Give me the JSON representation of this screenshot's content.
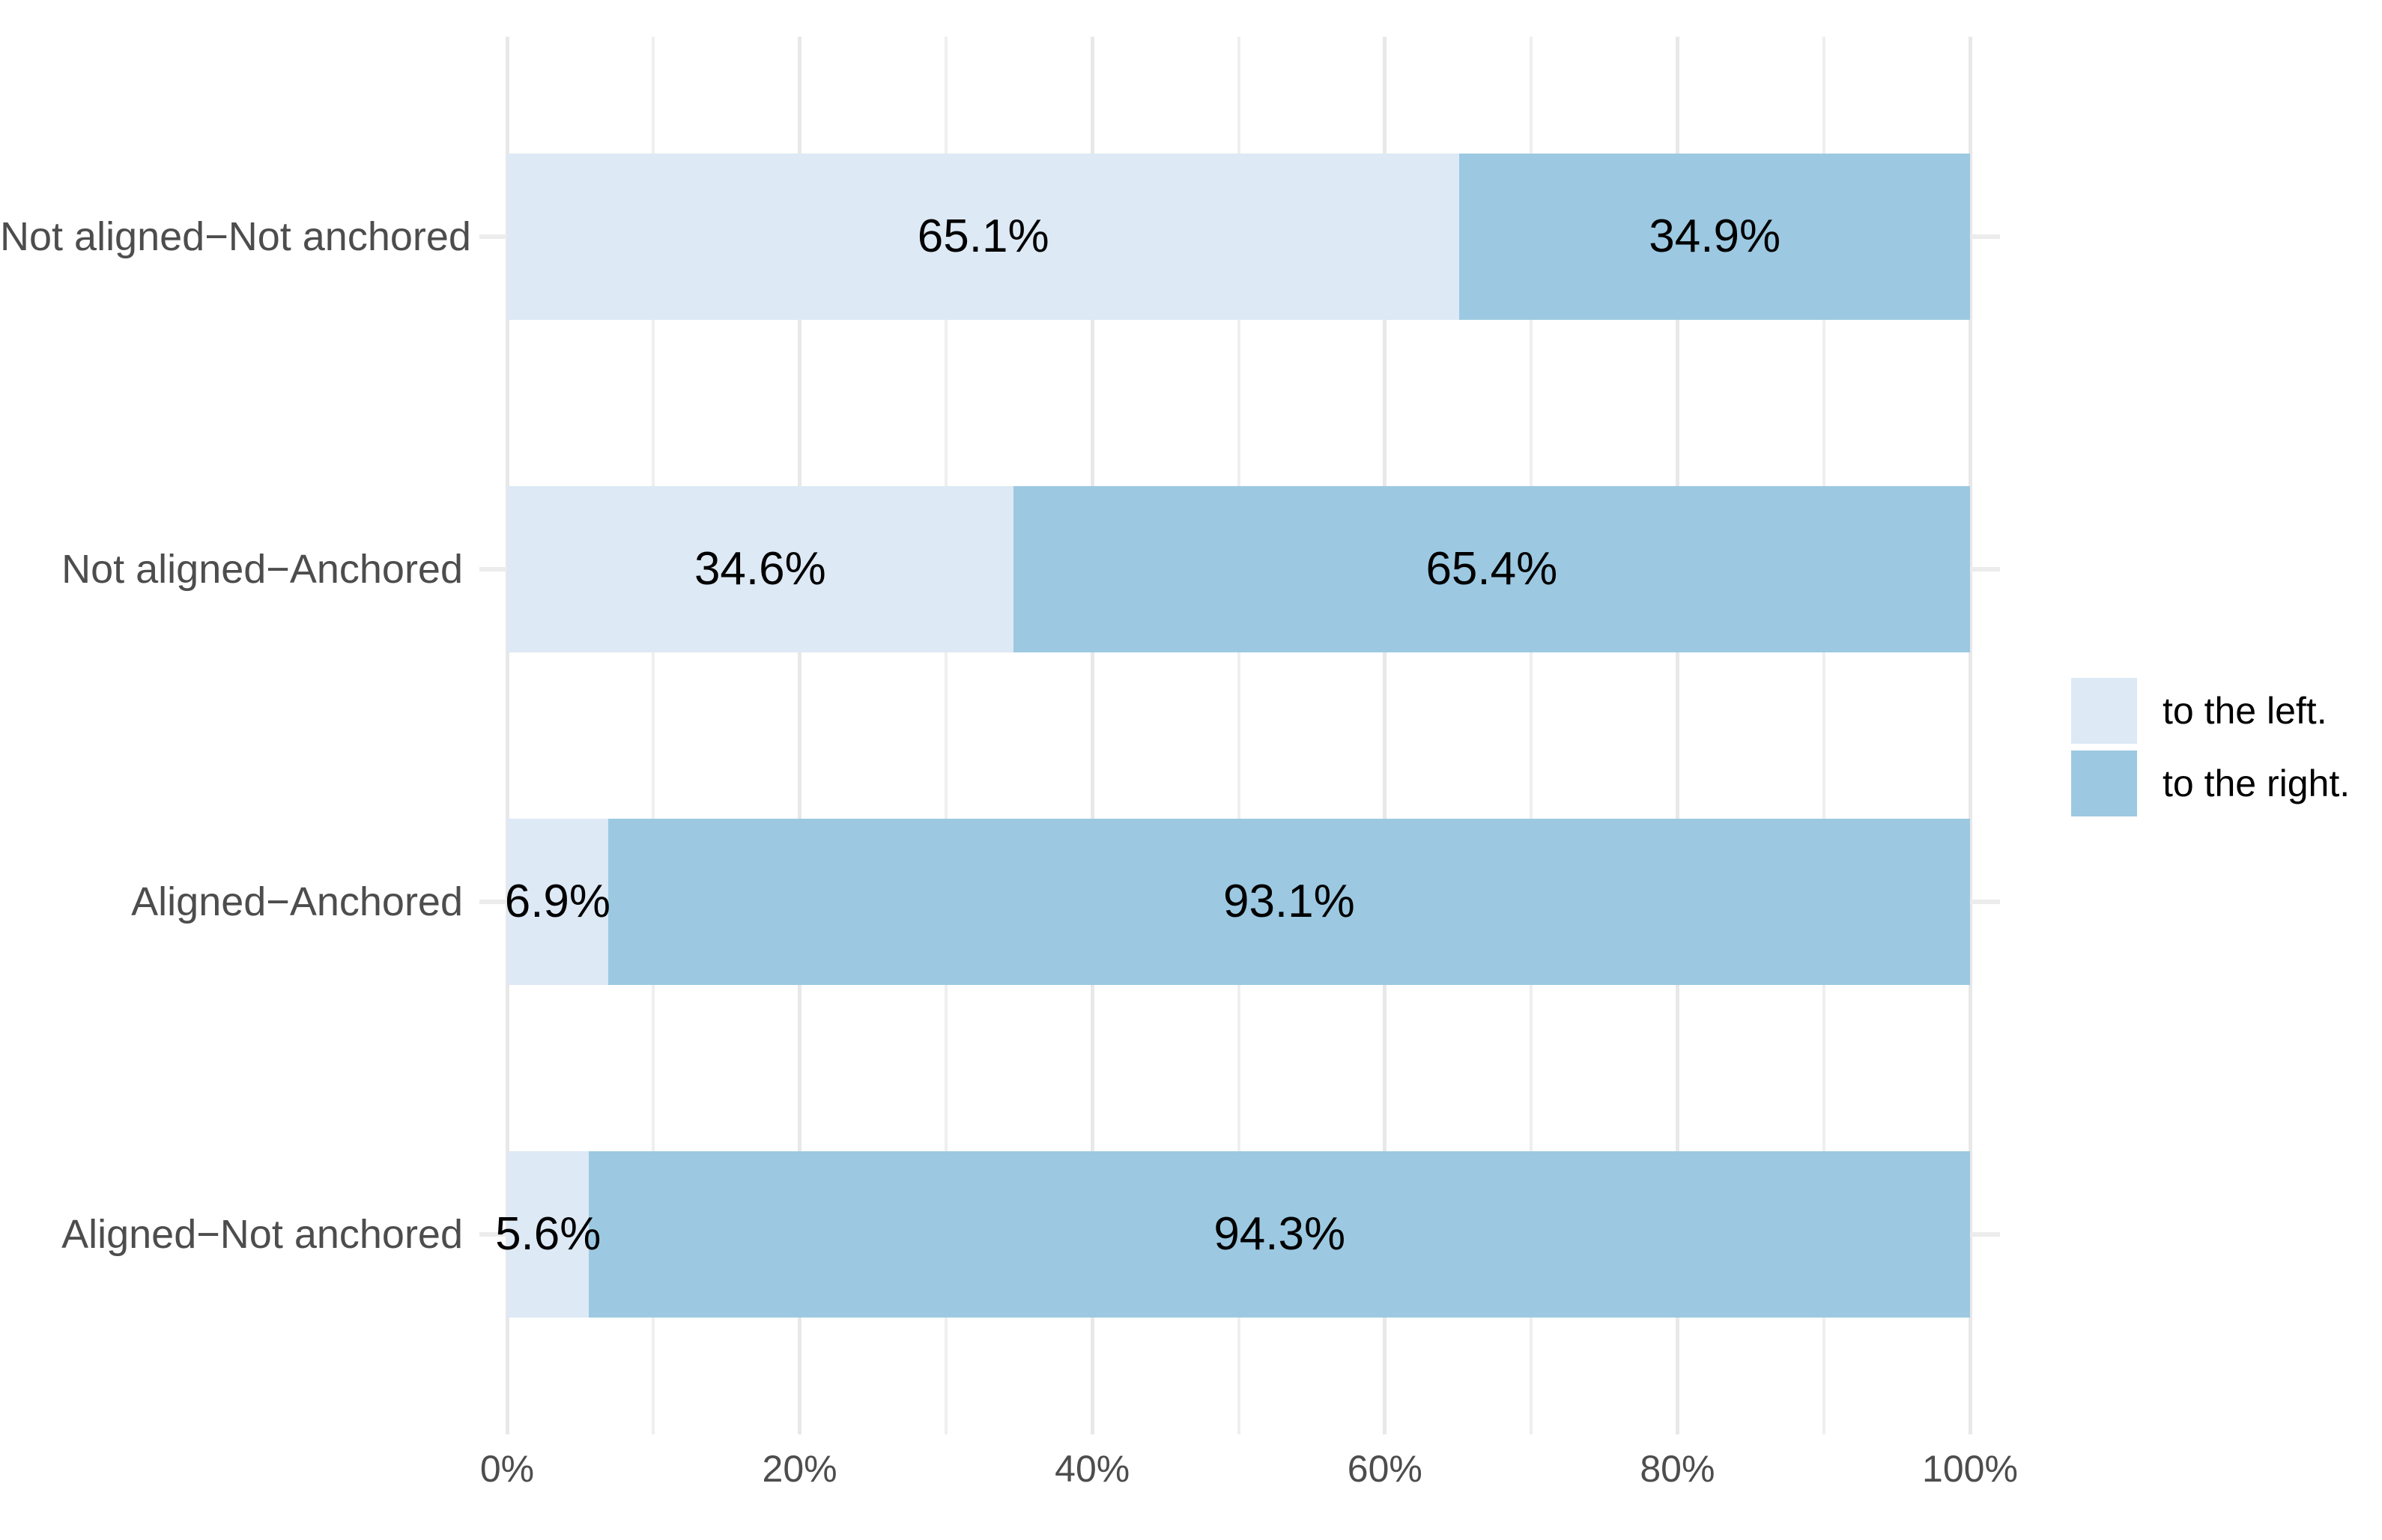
{
  "chart_data": {
    "type": "bar",
    "orientation": "horizontal",
    "stacked_percent": true,
    "title": "",
    "xlabel": "",
    "ylabel": "",
    "categories": [
      "Not aligned−Not anchored",
      "Not aligned−Anchored",
      "Aligned−Anchored",
      "Aligned−Not anchored"
    ],
    "series": [
      {
        "name": "to the left.",
        "color": "#DDE9F5",
        "values": [
          65.1,
          34.6,
          6.9,
          5.6
        ],
        "labels": [
          "65.1%",
          "34.6%",
          "6.9%",
          "5.6%"
        ]
      },
      {
        "name": "to the right.",
        "color": "#9CC9E1",
        "values": [
          34.9,
          65.4,
          93.1,
          94.3
        ],
        "labels": [
          "34.9%",
          "65.4%",
          "93.1%",
          "94.3%"
        ]
      }
    ],
    "x_ticks": [
      "0%",
      "20%",
      "40%",
      "60%",
      "80%",
      "100%"
    ],
    "x_tick_values": [
      0,
      20,
      40,
      60,
      80,
      100
    ],
    "xlim": [
      0,
      100
    ],
    "grid": {
      "show": true,
      "major_every": 20,
      "minor_every": 10
    },
    "legend": {
      "position": "right",
      "entries": [
        "to the left.",
        "to the right."
      ]
    }
  },
  "colors": {
    "background": "#FFFFFF",
    "axis_text": "#4D4D4D",
    "bar_label": "#000000",
    "legend_text": "#000000",
    "grid_major": "#E8E8E8",
    "grid_minor": "#EFEFEF",
    "grid_category": "#ECECEC"
  }
}
